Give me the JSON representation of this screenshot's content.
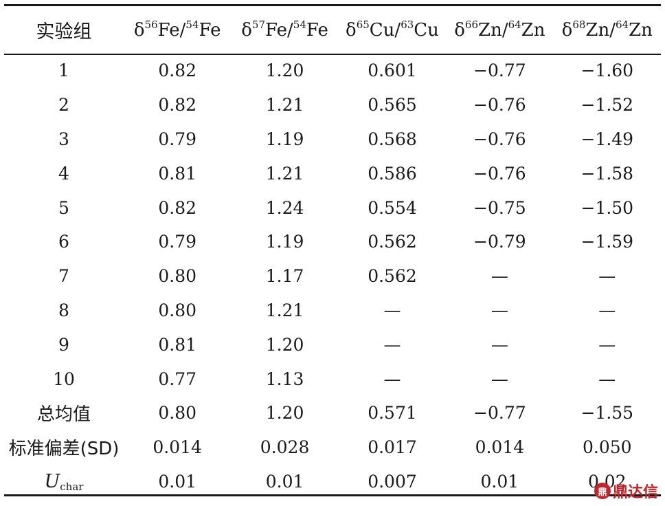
{
  "table": {
    "header": {
      "col0": "实验组",
      "cols": [
        {
          "prefix": "δ",
          "num_mass": "56",
          "num_el": "Fe",
          "slash": "/",
          "den_mass": "54",
          "den_el": "Fe"
        },
        {
          "prefix": "δ",
          "num_mass": "57",
          "num_el": "Fe",
          "slash": "/",
          "den_mass": "54",
          "den_el": "Fe"
        },
        {
          "prefix": "δ",
          "num_mass": "65",
          "num_el": "Cu",
          "slash": "/",
          "den_mass": "63",
          "den_el": "Cu"
        },
        {
          "prefix": "δ",
          "num_mass": "66",
          "num_el": "Zn",
          "slash": "/",
          "den_mass": "64",
          "den_el": "Zn"
        },
        {
          "prefix": "δ",
          "num_mass": "68",
          "num_el": "Zn",
          "slash": "/",
          "den_mass": "64",
          "den_el": "Zn"
        }
      ]
    },
    "rows": [
      {
        "label": "1",
        "cells": [
          "0.82",
          "1.20",
          "0.601",
          "−0.77",
          "−1.60"
        ]
      },
      {
        "label": "2",
        "cells": [
          "0.82",
          "1.21",
          "0.565",
          "−0.76",
          "−1.52"
        ]
      },
      {
        "label": "3",
        "cells": [
          "0.79",
          "1.19",
          "0.568",
          "−0.76",
          "−1.49"
        ]
      },
      {
        "label": "4",
        "cells": [
          "0.81",
          "1.21",
          "0.586",
          "−0.76",
          "−1.58"
        ]
      },
      {
        "label": "5",
        "cells": [
          "0.82",
          "1.24",
          "0.554",
          "−0.75",
          "−1.50"
        ]
      },
      {
        "label": "6",
        "cells": [
          "0.79",
          "1.19",
          "0.562",
          "−0.79",
          "−1.59"
        ]
      },
      {
        "label": "7",
        "cells": [
          "0.80",
          "1.17",
          "0.562",
          "—",
          "—"
        ]
      },
      {
        "label": "8",
        "cells": [
          "0.80",
          "1.21",
          "—",
          "—",
          "—"
        ]
      },
      {
        "label": "9",
        "cells": [
          "0.81",
          "1.20",
          "—",
          "—",
          "—"
        ]
      },
      {
        "label": "10",
        "cells": [
          "0.77",
          "1.13",
          "—",
          "—",
          "—"
        ]
      }
    ],
    "summary": [
      {
        "label": "总均值",
        "cells": [
          "0.80",
          "1.20",
          "0.571",
          "−0.77",
          "−1.55"
        ]
      },
      {
        "label": "标准偏差(SD)",
        "cells": [
          "0.014",
          "0.028",
          "0.017",
          "0.014",
          "0.050"
        ]
      }
    ],
    "uchar_row": {
      "label_main": "U",
      "label_sub": "char",
      "cells": [
        "0.01",
        "0.01",
        "0.007",
        "0.01",
        "0.02"
      ]
    }
  },
  "watermark": {
    "mark": "鼎",
    "text": "鼎达信"
  }
}
